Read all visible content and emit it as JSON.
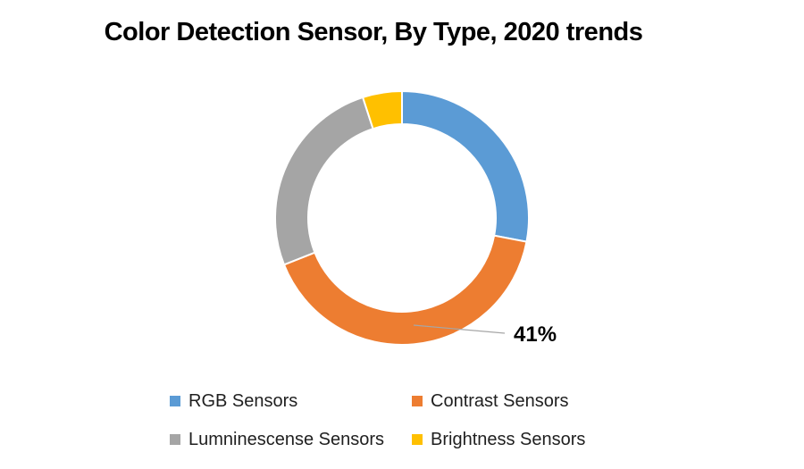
{
  "title": "Color Detection Sensor, By Type, 2020 trends",
  "chart_data": {
    "type": "pie",
    "subtype": "donut",
    "title": "Color Detection Sensor, By Type, 2020 trends",
    "categories": [
      "RGB Sensors",
      "Contrast Sensors",
      "Lumninescense Sensors",
      "Brightness Sensors"
    ],
    "values": [
      28,
      41,
      26,
      5
    ],
    "unit": "percent",
    "colors": [
      "#5B9BD5",
      "#ED7D31",
      "#A5A5A5",
      "#FFC000"
    ],
    "start_angle_deg": 0,
    "direction": "clockwise",
    "hole_ratio": 0.74,
    "segment_border_color": "#FFFFFF",
    "legend_position": "bottom",
    "data_labels": [
      {
        "category": "Contrast Sensors",
        "text": "41%",
        "leader_line": true,
        "leader_line_color": "#a6a6a6"
      }
    ]
  },
  "legend": {
    "items": [
      {
        "label": "RGB Sensors",
        "color": "#5B9BD5"
      },
      {
        "label": "Contrast Sensors",
        "color": "#ED7D31"
      },
      {
        "label": "Lumninescense Sensors",
        "color": "#A5A5A5"
      },
      {
        "label": "Brightness Sensors",
        "color": "#FFC000"
      }
    ]
  }
}
